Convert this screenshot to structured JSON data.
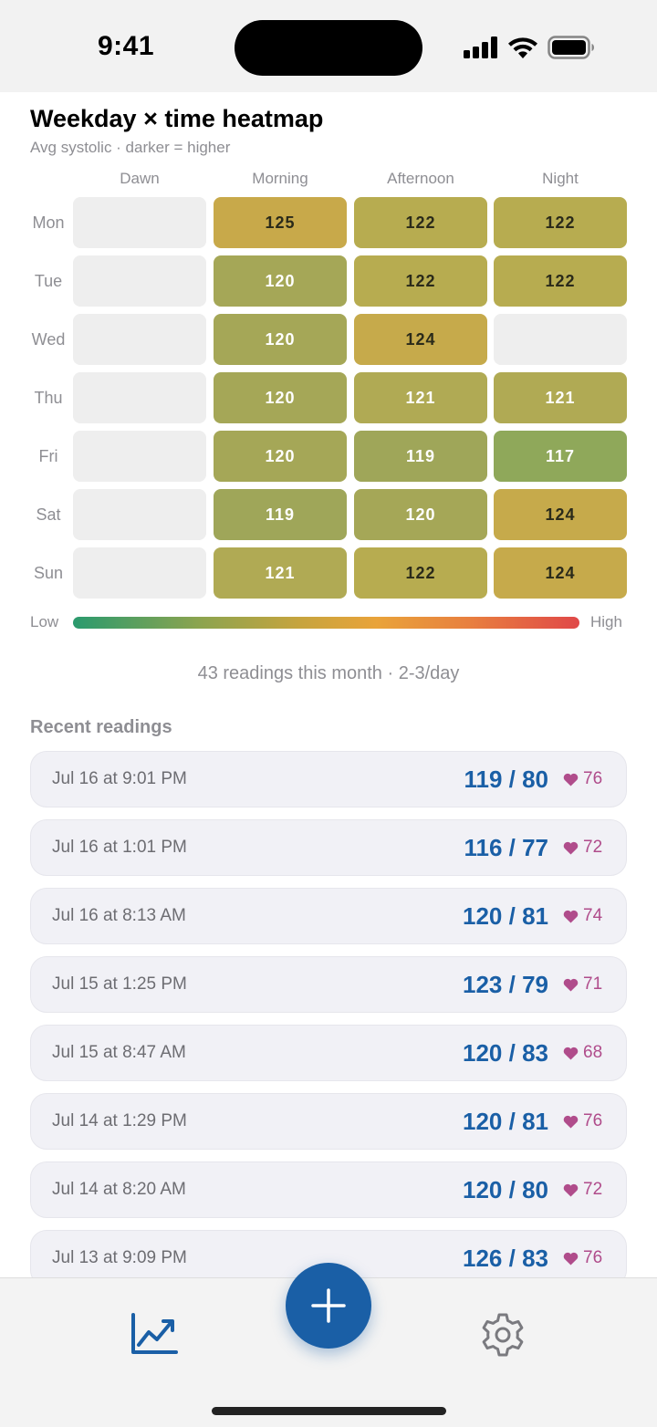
{
  "status_bar": {
    "time": "9:41"
  },
  "heatmap": {
    "title": "Weekday × time heatmap",
    "subtitle": "Avg systolic · darker = higher",
    "columns": [
      "Dawn",
      "Morning",
      "Afternoon",
      "Night"
    ],
    "rows": [
      {
        "day": "Mon",
        "values": [
          "",
          "125",
          "122",
          "122"
        ],
        "colors": [
          "#eeeeee",
          "#c8a94a",
          "#b7ac50",
          "#b7ac50"
        ],
        "text_colors": [
          "",
          "#2a2a1a",
          "#2a2a1a",
          "#2a2a1a"
        ]
      },
      {
        "day": "Tue",
        "values": [
          "",
          "120",
          "122",
          "122"
        ],
        "colors": [
          "#eeeeee",
          "#a5a757",
          "#b7ac50",
          "#b7ac50"
        ],
        "text_colors": [
          "",
          "#ffffff",
          "#2a2a1a",
          "#2a2a1a"
        ]
      },
      {
        "day": "Wed",
        "values": [
          "",
          "120",
          "124",
          ""
        ],
        "colors": [
          "#eeeeee",
          "#a5a757",
          "#c6aa4b",
          "#eeeeee"
        ],
        "text_colors": [
          "",
          "#ffffff",
          "#2a2a1a",
          ""
        ]
      },
      {
        "day": "Thu",
        "values": [
          "",
          "120",
          "121",
          "121"
        ],
        "colors": [
          "#eeeeee",
          "#a5a757",
          "#b0aa54",
          "#b0aa54"
        ],
        "text_colors": [
          "",
          "#ffffff",
          "#ffffff",
          "#ffffff"
        ]
      },
      {
        "day": "Fri",
        "values": [
          "",
          "120",
          "119",
          "117"
        ],
        "colors": [
          "#eeeeee",
          "#a5a757",
          "#9fa659",
          "#8fa85a"
        ],
        "text_colors": [
          "",
          "#ffffff",
          "#ffffff",
          "#ffffff"
        ]
      },
      {
        "day": "Sat",
        "values": [
          "",
          "119",
          "120",
          "124"
        ],
        "colors": [
          "#eeeeee",
          "#9fa659",
          "#a5a757",
          "#c6aa4b"
        ],
        "text_colors": [
          "",
          "#ffffff",
          "#ffffff",
          "#2a2a1a"
        ]
      },
      {
        "day": "Sun",
        "values": [
          "",
          "121",
          "122",
          "124"
        ],
        "colors": [
          "#eeeeee",
          "#b0aa54",
          "#b7ac50",
          "#c6aa4b"
        ],
        "text_colors": [
          "",
          "#ffffff",
          "#2a2a1a",
          "#2a2a1a"
        ]
      }
    ],
    "legend_low": "Low",
    "legend_high": "High"
  },
  "summary": "43 readings this month · 2-3/day",
  "recent": {
    "title": "Recent readings",
    "items": [
      {
        "date": "Jul 16 at 9:01 PM",
        "bp": "119 / 80",
        "hr": "76"
      },
      {
        "date": "Jul 16 at 1:01 PM",
        "bp": "116 / 77",
        "hr": "72"
      },
      {
        "date": "Jul 16 at 8:13 AM",
        "bp": "120 / 81",
        "hr": "74"
      },
      {
        "date": "Jul 15 at 1:25 PM",
        "bp": "123 / 79",
        "hr": "71"
      },
      {
        "date": "Jul 15 at 8:47 AM",
        "bp": "120 / 83",
        "hr": "68"
      },
      {
        "date": "Jul 14 at 1:29 PM",
        "bp": "120 / 81",
        "hr": "76"
      },
      {
        "date": "Jul 14 at 8:20 AM",
        "bp": "120 / 80",
        "hr": "72"
      },
      {
        "date": "Jul 13 at 9:09 PM",
        "bp": "126 / 83",
        "hr": "76"
      }
    ]
  },
  "tab_bar": {
    "icons": {
      "left": "chart-trend-icon",
      "center": "plus-icon",
      "right": "gear-icon"
    },
    "accent": "#1a5fa6"
  }
}
